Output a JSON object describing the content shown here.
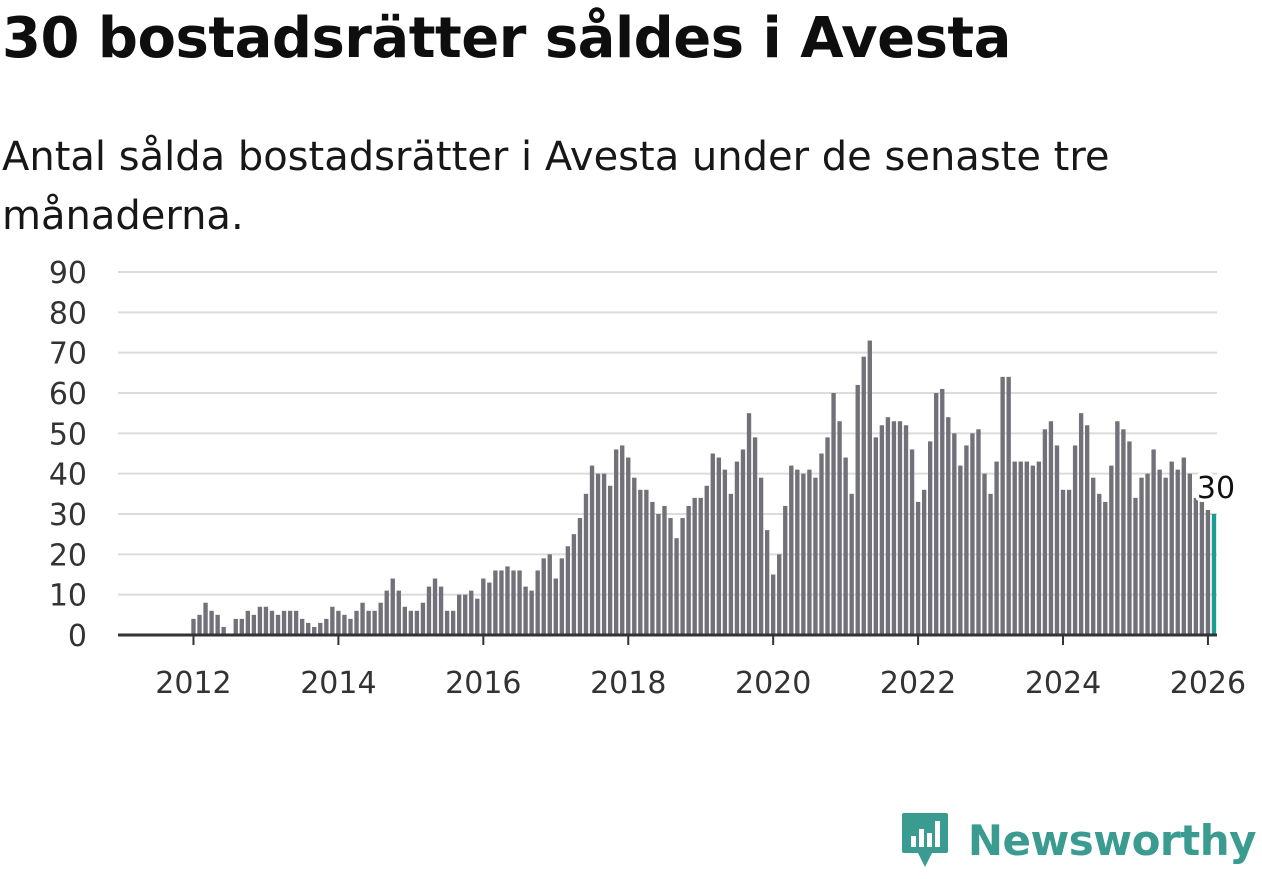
{
  "header": {
    "title": "30 bostadsrätter såldes i Avesta",
    "subtitle": "Antal sålda bostadsrätter i Avesta under de senaste tre månaderna."
  },
  "brand": {
    "name": "Newsworthy",
    "icon": "newsworthy-logo-icon",
    "color": "#3a9b91"
  },
  "colors": {
    "bar": "#727078",
    "highlight": "#1a9c90",
    "grid": "#dcdcdc"
  },
  "chart_data": {
    "type": "bar",
    "title": "30 bostadsrätter såldes i Avesta",
    "subtitle": "Antal sålda bostadsrätter i Avesta under de senaste tre månaderna.",
    "xlabel": "",
    "ylabel": "",
    "ylim": [
      0,
      90
    ],
    "yticks": [
      0,
      10,
      20,
      30,
      40,
      50,
      60,
      70,
      80,
      90
    ],
    "xticks": [
      "2012",
      "2014",
      "2016",
      "2018",
      "2020",
      "2022",
      "2024",
      "2026"
    ],
    "grid": true,
    "legend": "none",
    "frequency": "monthly",
    "start": "2011-01",
    "end": "2026-01",
    "highlight_label": "30",
    "values": [
      0,
      0,
      0,
      0,
      0,
      0,
      0,
      0,
      0,
      0,
      0,
      0,
      4,
      5,
      8,
      6,
      5,
      2,
      0,
      4,
      4,
      6,
      5,
      7,
      7,
      6,
      5,
      6,
      6,
      6,
      4,
      3,
      2,
      3,
      4,
      7,
      6,
      5,
      4,
      6,
      8,
      6,
      6,
      8,
      11,
      14,
      11,
      7,
      6,
      6,
      8,
      12,
      14,
      12,
      6,
      6,
      10,
      10,
      11,
      9,
      14,
      13,
      16,
      16,
      17,
      16,
      16,
      12,
      11,
      16,
      19,
      20,
      14,
      19,
      22,
      25,
      29,
      35,
      42,
      40,
      40,
      37,
      46,
      47,
      44,
      39,
      36,
      36,
      33,
      30,
      32,
      29,
      24,
      29,
      32,
      34,
      34,
      37,
      45,
      44,
      41,
      35,
      43,
      46,
      55,
      49,
      39,
      26,
      15,
      20,
      32,
      42,
      41,
      40,
      41,
      39,
      45,
      49,
      60,
      53,
      44,
      35,
      62,
      69,
      73,
      49,
      52,
      54,
      53,
      53,
      52,
      46,
      33,
      36,
      48,
      60,
      61,
      54,
      50,
      42,
      47,
      50,
      51,
      40,
      35,
      43,
      64,
      64,
      43,
      43,
      43,
      42,
      43,
      51,
      53,
      47,
      36,
      36,
      47,
      55,
      52,
      39,
      35,
      33,
      42,
      53,
      51,
      48,
      34,
      39,
      40,
      46,
      41,
      39,
      43,
      41,
      44,
      40,
      34,
      33,
      31,
      30
    ]
  }
}
